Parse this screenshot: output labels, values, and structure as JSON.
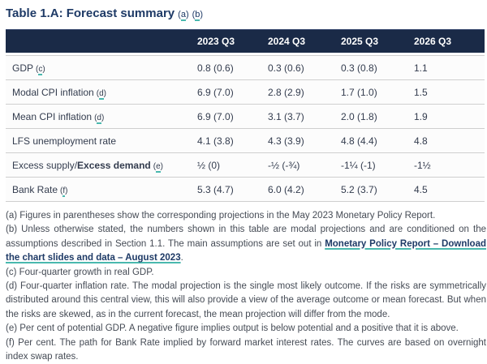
{
  "title": {
    "text": "Table 1.A: Forecast summary",
    "refs": [
      "a",
      "b"
    ]
  },
  "table": {
    "columns": [
      "2023 Q3",
      "2024 Q3",
      "2025 Q3",
      "2026 Q3"
    ],
    "rows": [
      {
        "label": "GDP",
        "ref": "c",
        "values": [
          "0.8 (0.6)",
          "0.3 (0.6)",
          "0.3 (0.8)",
          "1.1"
        ]
      },
      {
        "label": "Modal CPI inflation",
        "ref": "d",
        "values": [
          "6.9 (7.0)",
          "2.8 (2.9)",
          "1.7 (1.0)",
          "1.5"
        ]
      },
      {
        "label": "Mean CPI inflation",
        "ref": "d",
        "values": [
          "6.9 (7.0)",
          "3.1 (3.7)",
          "2.0 (1.8)",
          "1.9"
        ]
      },
      {
        "label": "LFS unemployment rate",
        "ref": "",
        "values": [
          "4.1 (3.8)",
          "4.3 (3.9)",
          "4.8 (4.4)",
          "4.8"
        ]
      },
      {
        "label": "Excess supply/",
        "label_bold": "Excess demand",
        "ref": "e",
        "values": [
          "½ (0)",
          "-½ (-¾)",
          "-1¼ (-1)",
          "-1½"
        ]
      },
      {
        "label": "Bank Rate",
        "ref": "f",
        "values": [
          "5.3 (4.7)",
          "6.0 (4.2)",
          "5.2 (3.7)",
          "4.5"
        ]
      }
    ]
  },
  "footnotes": {
    "a": "(a) Figures in parentheses show the corresponding projections in the May 2023 Monetary Policy Report.",
    "b_before": "(b) Unless otherwise stated, the numbers shown in this table are modal projections and are conditioned on the assumptions described in Section 1.1. The main assumptions are set out in ",
    "b_link": "Monetary Policy Report – Download the chart slides and data – August 2023",
    "b_after": ".",
    "c": "(c) Four-quarter growth in real GDP.",
    "d": "(d) Four-quarter inflation rate. The modal projection is the single most likely outcome. If the risks are symmetrically distributed around this central view, this will also provide a view of the average outcome or mean forecast. But when the risks are skewed, as in the current forecast, the mean projection will differ from the mode.",
    "e": "(e) Per cent of potential GDP. A negative figure implies output is below potential and a positive that it is above.",
    "f": "(f) Per cent. The path for Bank Rate implied by forward market interest rates. The curves are based on overnight index swap rates."
  },
  "colors": {
    "header_bg": "#1a2a47",
    "accent_teal": "#49b8ae",
    "title_navy": "#1e3a66",
    "footnote_text": "#454b55",
    "table_text": "#333c4e",
    "row_border": "#cfcfcf"
  }
}
